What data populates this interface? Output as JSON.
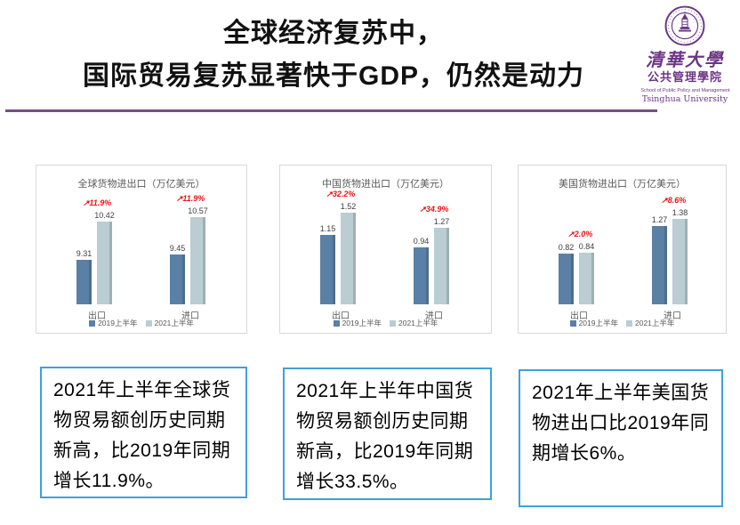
{
  "slide": {
    "title_line1": "全球经济复苏中，",
    "title_line2": "国际贸易复苏显著快于GDP，仍然是动力"
  },
  "logo": {
    "cn_name": "清華大學",
    "cn_school": "公共管理學院",
    "en_school": "School of Public Policy and Management",
    "en_name": "Tsinghua University"
  },
  "chart_data": [
    {
      "type": "bar",
      "title": "全球货物进出口（万亿美元）",
      "categories": [
        "出口",
        "进口"
      ],
      "series": [
        {
          "name": "2019上半年",
          "values": [
            9.31,
            9.45
          ]
        },
        {
          "name": "2021上半年",
          "values": [
            10.42,
            10.57
          ]
        }
      ],
      "growth_labels": [
        "↗11.9%",
        "↗11.9%"
      ],
      "axis_min": 8,
      "axis_max": 11,
      "legend_position": "bottom",
      "grid": false
    },
    {
      "type": "bar",
      "title": "中国货物进出口（万亿美元）",
      "categories": [
        "出口",
        "进口"
      ],
      "series": [
        {
          "name": "2019上半年",
          "values": [
            1.15,
            0.94
          ]
        },
        {
          "name": "2021上半年",
          "values": [
            1.52,
            1.27
          ]
        }
      ],
      "growth_labels": [
        "↗32.2%",
        "↗34.9%"
      ],
      "axis_min": 0,
      "axis_max": 1.7,
      "legend_position": "bottom",
      "grid": false
    },
    {
      "type": "bar",
      "title": "美国货物进出口（万亿美元）",
      "categories": [
        "出口",
        "进口"
      ],
      "series": [
        {
          "name": "2019上半年",
          "values": [
            0.82,
            1.27
          ]
        },
        {
          "name": "2021上半年",
          "values": [
            0.84,
            1.38
          ]
        }
      ],
      "growth_labels": [
        "↗2.0%",
        "↗8.6%"
      ],
      "axis_min": 0,
      "axis_max": 1.65,
      "legend_position": "bottom",
      "grid": false
    }
  ],
  "notes": [
    {
      "text": "2021年上半年全球货物贸易额创历史同期新高，比2019年同期增长11.9%。"
    },
    {
      "text": "2021年上半年中国货物贸易额创历史同期新高，比2019年同期增长33.5%。"
    },
    {
      "text": "2021年上半年美国货物进出口比2019年同期增长6%。"
    }
  ],
  "colors": {
    "bar_2019": "#5b80a5",
    "bar_2021": "#b9cdd2",
    "growth": "#ee1111",
    "note_border": "#3ea1da",
    "divider": "#7a4e85",
    "logo": "#6b3585"
  }
}
